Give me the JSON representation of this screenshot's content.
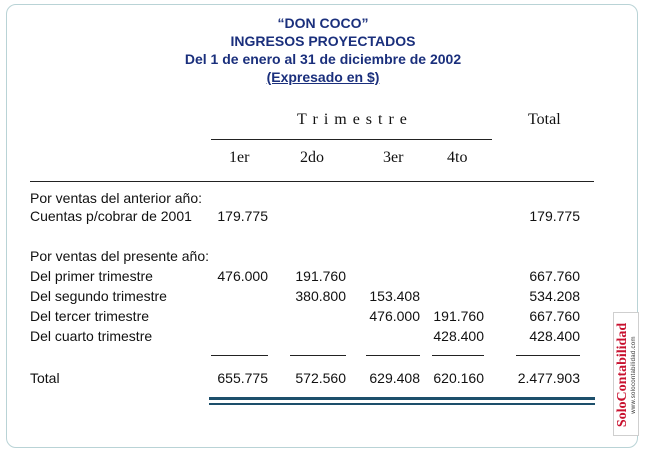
{
  "header": {
    "company": "“DON COCO”",
    "title": "INGRESOS PROYECTADOS",
    "period": "Del 1 de enero al 31 de diciembre de 2002",
    "currency": "(Expresado en $)"
  },
  "table": {
    "group_header": "T r i m e s t r e",
    "total_header": "Total",
    "columns": [
      "1er",
      "2do",
      "3er",
      "4to"
    ],
    "section1_label": "Por ventas del anterior año:",
    "section2_label": "Por ventas del presente año:",
    "rows": [
      {
        "label": "Cuentas p/cobrar de 2001",
        "q1": "179.775",
        "q2": "",
        "q3": "",
        "q4": "",
        "total": "179.775"
      },
      {
        "label": "Del primer trimestre",
        "q1": "476.000",
        "q2": "191.760",
        "q3": "",
        "q4": "",
        "total": "667.760"
      },
      {
        "label": "Del segundo trimestre",
        "q1": "",
        "q2": "380.800",
        "q3": "153.408",
        "q4": "",
        "total": "534.208"
      },
      {
        "label": "Del tercer  trimestre",
        "q1": "",
        "q2": "",
        "q3": "476.000",
        "q4": "191.760",
        "total": "667.760"
      },
      {
        "label": "Del cuarto  trimestre",
        "q1": "",
        "q2": "",
        "q3": "",
        "q4": "428.400",
        "total": "428.400"
      }
    ],
    "totals": {
      "label": "Total",
      "q1": "655.775",
      "q2": "572.560",
      "q3": "629.408",
      "q4": "620.160",
      "total": "2.477.903"
    }
  },
  "logo": {
    "brand_part1": "Solo",
    "brand_part2": "Contabilidad",
    "url": "www.solocontabilidad.com",
    "colors": {
      "brand": "#c8102e"
    }
  },
  "colors": {
    "header_text": "#1a2f7c",
    "rule_dark": "#1d4f6b",
    "frame_border": "#b9d3d6"
  }
}
